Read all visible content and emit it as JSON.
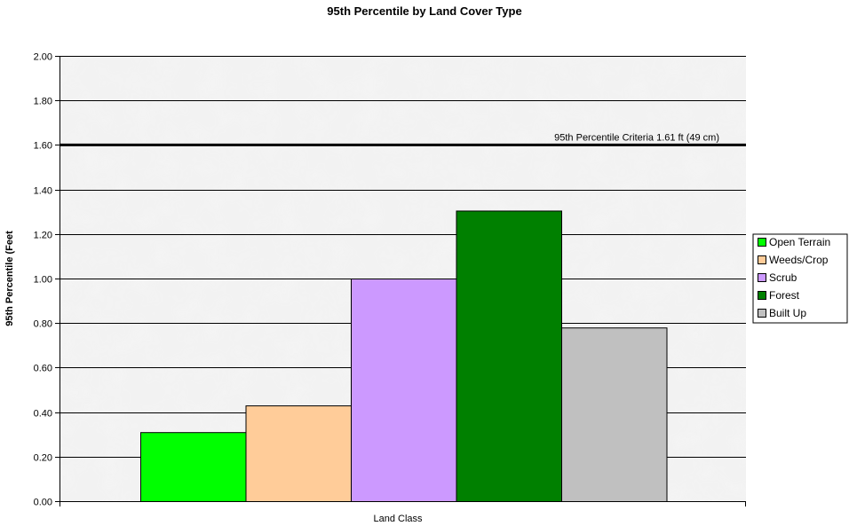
{
  "chart_data": {
    "type": "bar",
    "title": "95th Percentile by Land Cover Type",
    "xlabel": "Land Class",
    "ylabel": "95th Percentile (Feet",
    "ylim": [
      0,
      2.0
    ],
    "y_ticks": [
      "0.00",
      "0.20",
      "0.40",
      "0.60",
      "0.80",
      "1.00",
      "1.20",
      "1.40",
      "1.60",
      "1.80",
      "2.00"
    ],
    "grid": true,
    "legend_position": "right",
    "series": [
      {
        "name": "Open Terrain",
        "value": 0.31,
        "color": "#00ff00"
      },
      {
        "name": "Weeds/Crop",
        "value": 0.43,
        "color": "#ffcc99"
      },
      {
        "name": "Scrub",
        "value": 1.0,
        "color": "#cc99ff"
      },
      {
        "name": "Forest",
        "value": 1.305,
        "color": "#008000"
      },
      {
        "name": "Built Up",
        "value": 0.78,
        "color": "#c0c0c0"
      }
    ],
    "reference_line": {
      "value": 1.6,
      "label": "95th Percentile Criteria 1.61 ft (49 cm)",
      "color": "#000000"
    },
    "plot_background": "#f2f2f2"
  }
}
